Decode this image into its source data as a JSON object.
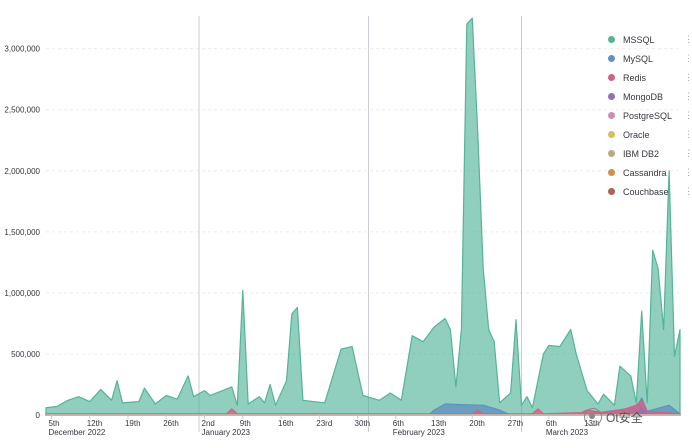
{
  "chart_data": {
    "type": "area",
    "title": "",
    "xlabel": "",
    "ylabel": "",
    "ylim": [
      0,
      3300000
    ],
    "yticks": [
      0,
      500000,
      1000000,
      1500000,
      2000000,
      2500000,
      3000000
    ],
    "ytick_labels": [
      "0",
      "500,000",
      "1,000,000",
      "1,500,000",
      "2,000,000",
      "2,500,000",
      "3,000,000"
    ],
    "grid": true,
    "legend_position": "top-right",
    "x_start": "2022-12-04",
    "x_end": "2023-03-30",
    "xticks": [
      {
        "date": "2022-12-05",
        "label": "5th",
        "sub": "December 2022"
      },
      {
        "date": "2022-12-12",
        "label": "12th",
        "sub": ""
      },
      {
        "date": "2022-12-19",
        "label": "19th",
        "sub": ""
      },
      {
        "date": "2022-12-26",
        "label": "26th",
        "sub": ""
      },
      {
        "date": "2023-01-02",
        "label": "2nd",
        "sub": "January 2023"
      },
      {
        "date": "2023-01-09",
        "label": "9th",
        "sub": ""
      },
      {
        "date": "2023-01-16",
        "label": "16th",
        "sub": ""
      },
      {
        "date": "2023-01-23",
        "label": "23rd",
        "sub": ""
      },
      {
        "date": "2023-01-30",
        "label": "30th",
        "sub": ""
      },
      {
        "date": "2023-02-06",
        "label": "6th",
        "sub": "February 2023"
      },
      {
        "date": "2023-02-13",
        "label": "13th",
        "sub": ""
      },
      {
        "date": "2023-02-20",
        "label": "20th",
        "sub": ""
      },
      {
        "date": "2023-02-27",
        "label": "27th",
        "sub": ""
      },
      {
        "date": "2023-03-06",
        "label": "6th",
        "sub": "March 2023"
      },
      {
        "date": "2023-03-13",
        "label": "13th",
        "sub": ""
      }
    ],
    "month_boundaries": [
      "2023-01-01",
      "2023-02-01",
      "2023-03-01"
    ],
    "series": [
      {
        "name": "MSSQL",
        "color": "#54b399",
        "points": [
          [
            "2022-12-04",
            60000
          ],
          [
            "2022-12-06",
            70000
          ],
          [
            "2022-12-08",
            120000
          ],
          [
            "2022-12-10",
            150000
          ],
          [
            "2022-12-12",
            110000
          ],
          [
            "2022-12-14",
            210000
          ],
          [
            "2022-12-16",
            120000
          ],
          [
            "2022-12-17",
            280000
          ],
          [
            "2022-12-18",
            100000
          ],
          [
            "2022-12-21",
            110000
          ],
          [
            "2022-12-22",
            220000
          ],
          [
            "2022-12-24",
            90000
          ],
          [
            "2022-12-26",
            160000
          ],
          [
            "2022-12-28",
            130000
          ],
          [
            "2022-12-30",
            320000
          ],
          [
            "2022-12-31",
            150000
          ],
          [
            "2023-01-02",
            200000
          ],
          [
            "2023-01-03",
            160000
          ],
          [
            "2023-01-07",
            230000
          ],
          [
            "2023-01-08",
            80000
          ],
          [
            "2023-01-09",
            1020000
          ],
          [
            "2023-01-10",
            90000
          ],
          [
            "2023-01-12",
            150000
          ],
          [
            "2023-01-13",
            100000
          ],
          [
            "2023-01-14",
            250000
          ],
          [
            "2023-01-15",
            80000
          ],
          [
            "2023-01-17",
            280000
          ],
          [
            "2023-01-18",
            830000
          ],
          [
            "2023-01-19",
            880000
          ],
          [
            "2023-01-20",
            120000
          ],
          [
            "2023-01-24",
            100000
          ],
          [
            "2023-01-27",
            540000
          ],
          [
            "2023-01-29",
            560000
          ],
          [
            "2023-01-31",
            160000
          ],
          [
            "2023-02-03",
            120000
          ],
          [
            "2023-02-05",
            180000
          ],
          [
            "2023-02-07",
            120000
          ],
          [
            "2023-02-09",
            650000
          ],
          [
            "2023-02-11",
            600000
          ],
          [
            "2023-02-13",
            720000
          ],
          [
            "2023-02-15",
            790000
          ],
          [
            "2023-02-16",
            700000
          ],
          [
            "2023-02-17",
            230000
          ],
          [
            "2023-02-18",
            700000
          ],
          [
            "2023-02-19",
            3200000
          ],
          [
            "2023-02-20",
            3250000
          ],
          [
            "2023-02-21",
            2300000
          ],
          [
            "2023-02-22",
            1200000
          ],
          [
            "2023-02-23",
            700000
          ],
          [
            "2023-02-24",
            600000
          ],
          [
            "2023-02-25",
            100000
          ],
          [
            "2023-02-27",
            180000
          ],
          [
            "2023-02-28",
            780000
          ],
          [
            "2023-03-01",
            80000
          ],
          [
            "2023-03-02",
            150000
          ],
          [
            "2023-03-03",
            60000
          ],
          [
            "2023-03-05",
            500000
          ],
          [
            "2023-03-06",
            570000
          ],
          [
            "2023-03-08",
            560000
          ],
          [
            "2023-03-10",
            700000
          ],
          [
            "2023-03-11",
            500000
          ],
          [
            "2023-03-13",
            200000
          ],
          [
            "2023-03-15",
            90000
          ],
          [
            "2023-03-16",
            170000
          ],
          [
            "2023-03-18",
            80000
          ],
          [
            "2023-03-19",
            400000
          ],
          [
            "2023-03-21",
            320000
          ],
          [
            "2023-03-22",
            100000
          ],
          [
            "2023-03-23",
            850000
          ],
          [
            "2023-03-24",
            100000
          ],
          [
            "2023-03-25",
            1350000
          ],
          [
            "2023-03-26",
            1200000
          ],
          [
            "2023-03-27",
            700000
          ],
          [
            "2023-03-28",
            2000000
          ],
          [
            "2023-03-29",
            480000
          ],
          [
            "2023-03-30",
            700000
          ]
        ]
      },
      {
        "name": "MySQL",
        "color": "#6092c0",
        "points": [
          [
            "2022-12-04",
            0
          ],
          [
            "2023-02-12",
            0
          ],
          [
            "2023-02-13",
            40000
          ],
          [
            "2023-02-15",
            90000
          ],
          [
            "2023-02-18",
            85000
          ],
          [
            "2023-02-22",
            80000
          ],
          [
            "2023-02-25",
            40000
          ],
          [
            "2023-02-27",
            0
          ],
          [
            "2023-03-10",
            0
          ],
          [
            "2023-03-15",
            20000
          ],
          [
            "2023-03-22",
            60000
          ],
          [
            "2023-03-23",
            140000
          ],
          [
            "2023-03-24",
            30000
          ],
          [
            "2023-03-28",
            80000
          ],
          [
            "2023-03-30",
            10000
          ]
        ]
      },
      {
        "name": "Redis",
        "color": "#d36086",
        "points": [
          [
            "2022-12-04",
            10000
          ],
          [
            "2023-01-06",
            10000
          ],
          [
            "2023-01-07",
            50000
          ],
          [
            "2023-01-08",
            10000
          ],
          [
            "2023-02-20",
            10000
          ],
          [
            "2023-02-21",
            40000
          ],
          [
            "2023-02-22",
            10000
          ],
          [
            "2023-03-03",
            10000
          ],
          [
            "2023-03-04",
            50000
          ],
          [
            "2023-03-05",
            10000
          ],
          [
            "2023-03-12",
            20000
          ],
          [
            "2023-03-13",
            40000
          ],
          [
            "2023-03-16",
            20000
          ],
          [
            "2023-03-20",
            50000
          ],
          [
            "2023-03-22",
            80000
          ],
          [
            "2023-03-23",
            120000
          ],
          [
            "2023-03-24",
            30000
          ],
          [
            "2023-03-30",
            10000
          ]
        ]
      },
      {
        "name": "MongoDB",
        "color": "#9170b8",
        "points": [
          [
            "2022-12-04",
            3000
          ],
          [
            "2023-03-22",
            3000
          ],
          [
            "2023-03-23",
            60000
          ],
          [
            "2023-03-24",
            5000
          ],
          [
            "2023-03-30",
            3000
          ]
        ]
      },
      {
        "name": "PostgreSQL",
        "color": "#ca8eae",
        "points": [
          [
            "2022-12-04",
            2000
          ],
          [
            "2023-03-30",
            2000
          ]
        ]
      },
      {
        "name": "Oracle",
        "color": "#d6bf57",
        "points": [
          [
            "2022-12-04",
            1000
          ],
          [
            "2023-03-30",
            1000
          ]
        ]
      },
      {
        "name": "IBM DB2",
        "color": "#b9a888",
        "points": [
          [
            "2022-12-04",
            1000
          ],
          [
            "2023-03-30",
            1000
          ]
        ]
      },
      {
        "name": "Cassandra",
        "color": "#da8b45",
        "points": [
          [
            "2022-12-04",
            1000
          ],
          [
            "2023-03-30",
            1000
          ]
        ]
      },
      {
        "name": "Couchbase",
        "color": "#aa6556",
        "points": [
          [
            "2022-12-04",
            2000
          ],
          [
            "2023-03-30",
            2000
          ]
        ]
      }
    ]
  },
  "legend": {
    "items": [
      {
        "label": "MSSQL",
        "color": "#54b399"
      },
      {
        "label": "MySQL",
        "color": "#6092c0"
      },
      {
        "label": "Redis",
        "color": "#d36086"
      },
      {
        "label": "MongoDB",
        "color": "#9170b8"
      },
      {
        "label": "PostgreSQL",
        "color": "#ca8eae"
      },
      {
        "label": "Oracle",
        "color": "#d6bf57"
      },
      {
        "label": "IBM DB2",
        "color": "#b9a888"
      },
      {
        "label": "Cassandra",
        "color": "#da8b45"
      },
      {
        "label": "Couchbase",
        "color": "#aa6556"
      }
    ],
    "more_glyph": "⋮"
  },
  "watermark": {
    "text": "Ot安全"
  }
}
